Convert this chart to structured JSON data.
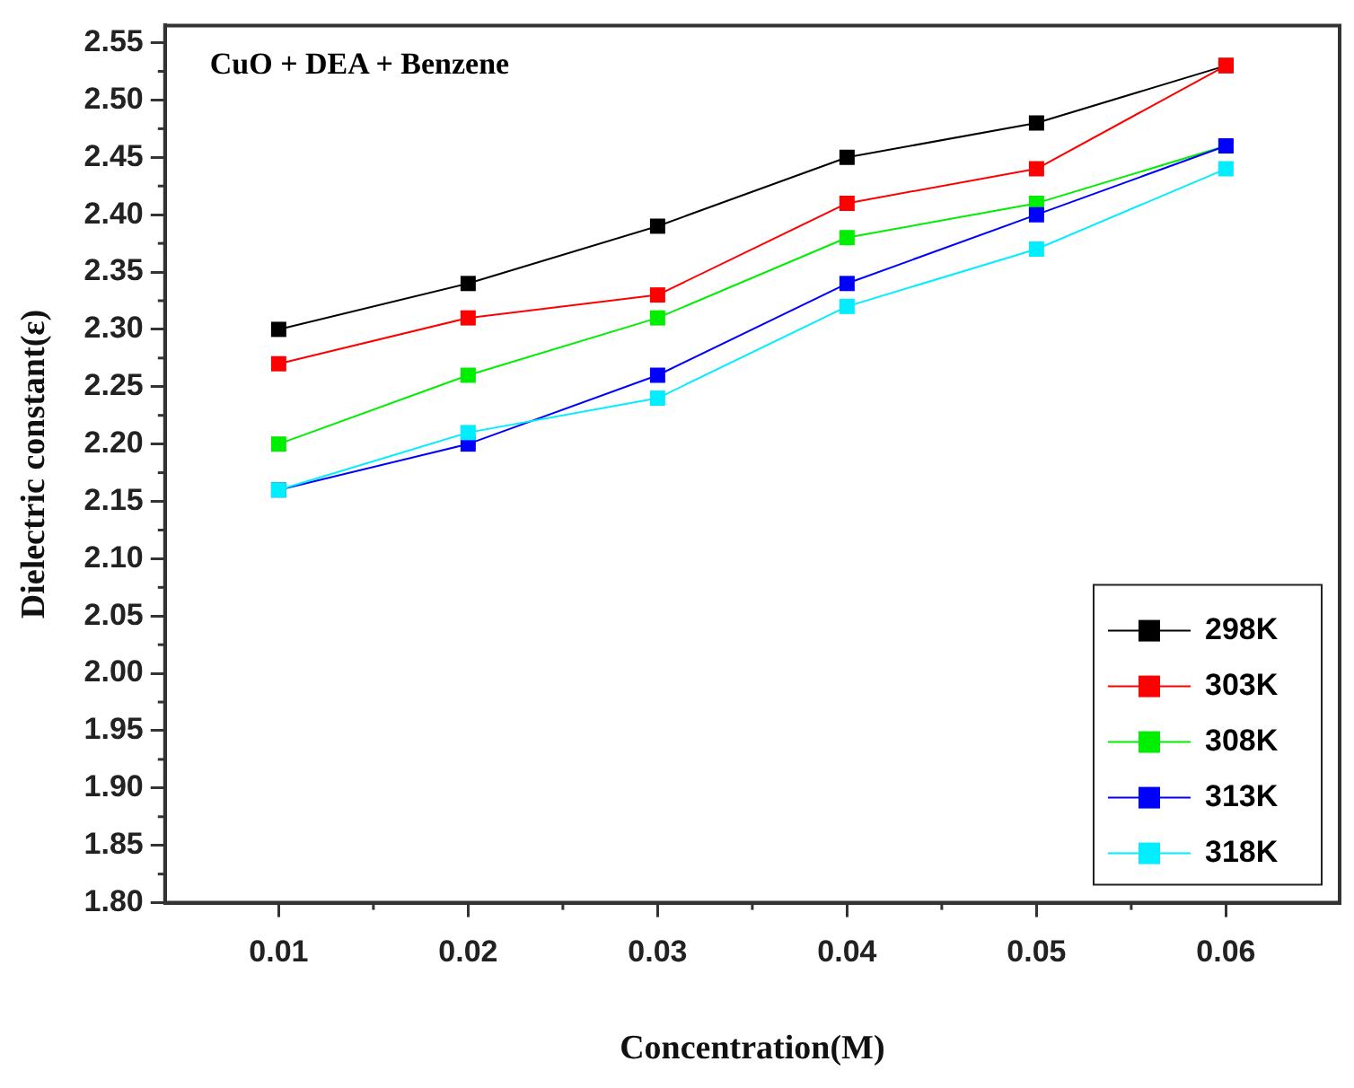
{
  "chart_data": {
    "type": "line",
    "title": "CuO + DEA + Benzene",
    "xlabel": "Concentration(M)",
    "ylabel": "Dielectric constant(ε)",
    "x": [
      0.01,
      0.02,
      0.03,
      0.04,
      0.05,
      0.06
    ],
    "xlim": [
      0.004,
      0.066
    ],
    "xticks": [
      0.01,
      0.02,
      0.03,
      0.04,
      0.05,
      0.06
    ],
    "ylim": [
      1.8,
      2.565
    ],
    "yticks": [
      {
        "value": 1.8,
        "label": "1.80"
      },
      {
        "value": 1.85,
        "label": "1.85"
      },
      {
        "value": 1.9,
        "label": "1.90"
      },
      {
        "value": 1.95,
        "label": "1.95"
      },
      {
        "value": 2.0,
        "label": "2.00"
      },
      {
        "value": 2.05,
        "label": "2.05"
      },
      {
        "value": 2.1,
        "label": "2.10"
      },
      {
        "value": 2.15,
        "label": "2.15"
      },
      {
        "value": 2.2,
        "label": "2.20"
      },
      {
        "value": 2.25,
        "label": "2.25"
      },
      {
        "value": 2.3,
        "label": "2.30"
      },
      {
        "value": 2.35,
        "label": "2.35"
      },
      {
        "value": 2.4,
        "label": "2.40"
      },
      {
        "value": 2.45,
        "label": "2.45"
      },
      {
        "value": 2.5,
        "label": "2.50"
      },
      {
        "value": 2.55,
        "label": "2.55"
      }
    ],
    "series": [
      {
        "name": "298K",
        "color": "#000000",
        "values": [
          2.3,
          2.34,
          2.39,
          2.45,
          2.48,
          2.53
        ]
      },
      {
        "name": "303K",
        "color": "#ff0000",
        "values": [
          2.27,
          2.31,
          2.33,
          2.41,
          2.44,
          2.53
        ]
      },
      {
        "name": "308K",
        "color": "#00ee00",
        "values": [
          2.2,
          2.26,
          2.31,
          2.38,
          2.41,
          2.46
        ]
      },
      {
        "name": "313K",
        "color": "#0000ff",
        "values": [
          2.16,
          2.2,
          2.26,
          2.34,
          2.4,
          2.46
        ]
      },
      {
        "name": "318K",
        "color": "#00eeff",
        "values": [
          2.16,
          2.21,
          2.24,
          2.32,
          2.37,
          2.44
        ]
      }
    ],
    "legend": "bottom right",
    "grid": false,
    "marker": "square",
    "line_style": "solid"
  }
}
